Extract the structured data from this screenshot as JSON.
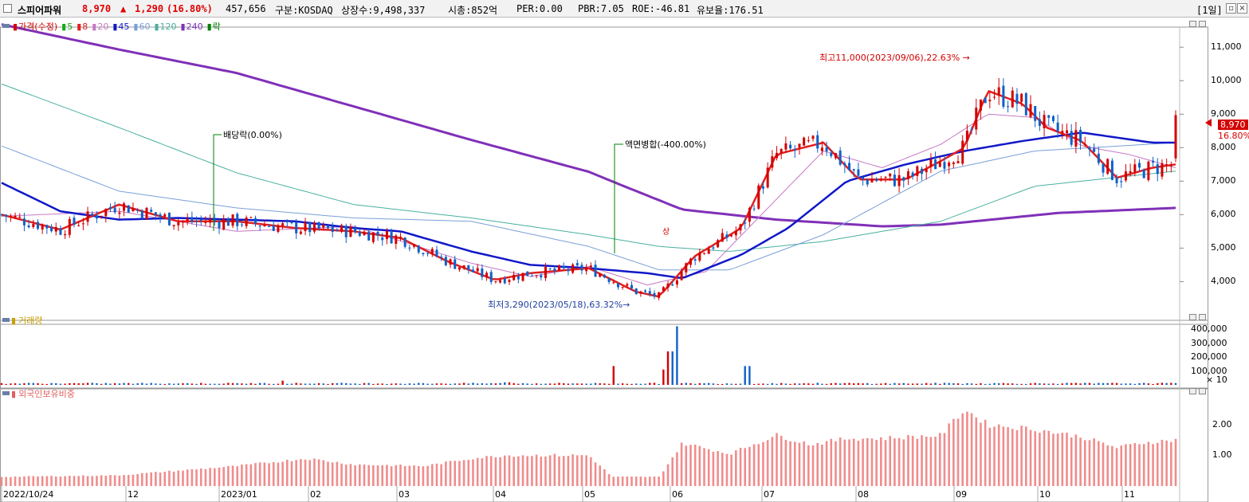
{
  "header": {
    "stock_name": "스피어파워",
    "price": "8,970",
    "change_arrow": "▲",
    "change": "1,290",
    "change_pct": "(16.80%)",
    "volume": "457,656",
    "market": "구분:KOSDAQ",
    "shares": "상장수:9,498,337",
    "mcap": "시총:852억",
    "per": "PER:0.00",
    "pbr": "PBR:7.05",
    "roe": "ROE:-46.81",
    "holding": "유보율:176.51",
    "period": "[1일]",
    "up_color": "#e00000"
  },
  "legend_price": [
    {
      "label": "가격(수정)",
      "color": "#d40000"
    },
    {
      "label": "5",
      "color": "#18a818"
    },
    {
      "label": "8",
      "color": "#e02020"
    },
    {
      "label": "20",
      "color": "#c878c8"
    },
    {
      "label": "45",
      "color": "#1018c8"
    },
    {
      "label": "60",
      "color": "#7aa0d8"
    },
    {
      "label": "120",
      "color": "#48b0a0"
    },
    {
      "label": "240",
      "color": "#8030b8"
    },
    {
      "label": "락",
      "color": "#008000"
    }
  ],
  "legend_volume": "거래량",
  "legend_foreign": "외국인보유비중",
  "annotations": {
    "high": "최고11,000(2023/09/06),22.63%",
    "low": "최저3,290(2023/05/18),63.32%",
    "dividend": "배당락(0.00%)",
    "split": "액면병합(-400.00%)",
    "up_marker": "상"
  },
  "current_price_tag": {
    "price": "8,970",
    "pct": "16.80%"
  },
  "axes": {
    "price_ticks": [
      "11,000",
      "10,000",
      "9,000",
      "8,000",
      "7,000",
      "6,000",
      "5,000",
      "4,000"
    ],
    "volume_ticks": [
      "400,000",
      "300,000",
      "200,000",
      "100,000"
    ],
    "volume_multiplier": "× 10",
    "foreign_ticks": [
      "2.00",
      "1.00"
    ],
    "x_labels": [
      "2022/10/24",
      "12",
      "2023/01",
      "02",
      "03",
      "04",
      "05",
      "06",
      "07",
      "08",
      "09",
      "10",
      "11"
    ]
  },
  "chart_data": {
    "type": "candlestick",
    "price_range": [
      3200,
      11600
    ],
    "volume_range": [
      0,
      440000
    ],
    "foreign_range": [
      0,
      2.9
    ],
    "high": {
      "value": 11000,
      "date": "2023/09/06"
    },
    "low": {
      "value": 3290,
      "date": "2023/05/18"
    },
    "last": {
      "value": 8970,
      "change": 1290,
      "change_pct": 16.8
    },
    "ma240": [
      [
        0,
        11680
      ],
      [
        0.1,
        10930
      ],
      [
        0.2,
        10230
      ],
      [
        0.3,
        9230
      ],
      [
        0.4,
        8230
      ],
      [
        0.5,
        7280
      ],
      [
        0.53,
        6850
      ],
      [
        0.58,
        6150
      ],
      [
        0.66,
        5850
      ],
      [
        0.75,
        5650
      ],
      [
        0.8,
        5700
      ],
      [
        0.9,
        6050
      ],
      [
        1,
        6200
      ]
    ],
    "ma120": [
      [
        0,
        9900
      ],
      [
        0.1,
        8600
      ],
      [
        0.2,
        7250
      ],
      [
        0.3,
        6300
      ],
      [
        0.4,
        5900
      ],
      [
        0.5,
        5400
      ],
      [
        0.56,
        5050
      ],
      [
        0.62,
        4900
      ],
      [
        0.7,
        5200
      ],
      [
        0.8,
        5800
      ],
      [
        0.88,
        6850
      ],
      [
        1,
        7300
      ]
    ],
    "ma60": [
      [
        0,
        8050
      ],
      [
        0.1,
        6700
      ],
      [
        0.2,
        6200
      ],
      [
        0.3,
        5900
      ],
      [
        0.4,
        5800
      ],
      [
        0.5,
        5050
      ],
      [
        0.56,
        4350
      ],
      [
        0.62,
        4350
      ],
      [
        0.7,
        5400
      ],
      [
        0.8,
        7300
      ],
      [
        0.88,
        7900
      ],
      [
        1,
        8150
      ]
    ],
    "ma45": [
      [
        0,
        6950
      ],
      [
        0.05,
        6100
      ],
      [
        0.1,
        5850
      ],
      [
        0.15,
        5900
      ],
      [
        0.2,
        5850
      ],
      [
        0.25,
        5800
      ],
      [
        0.3,
        5600
      ],
      [
        0.34,
        5500
      ],
      [
        0.4,
        4900
      ],
      [
        0.45,
        4500
      ],
      [
        0.5,
        4400
      ],
      [
        0.55,
        4250
      ],
      [
        0.58,
        4100
      ],
      [
        0.63,
        4800
      ],
      [
        0.67,
        5600
      ],
      [
        0.72,
        7000
      ],
      [
        0.77,
        7500
      ],
      [
        0.82,
        7900
      ],
      [
        0.87,
        8200
      ],
      [
        0.92,
        8450
      ],
      [
        0.95,
        8300
      ],
      [
        0.98,
        8150
      ],
      [
        1,
        8150
      ]
    ],
    "ma20": [
      [
        0,
        5950
      ],
      [
        0.1,
        6100
      ],
      [
        0.2,
        5500
      ],
      [
        0.3,
        5650
      ],
      [
        0.4,
        4550
      ],
      [
        0.45,
        4150
      ],
      [
        0.5,
        4450
      ],
      [
        0.55,
        3900
      ],
      [
        0.6,
        4300
      ],
      [
        0.65,
        6100
      ],
      [
        0.7,
        7900
      ],
      [
        0.75,
        7400
      ],
      [
        0.8,
        8100
      ],
      [
        0.84,
        9000
      ],
      [
        0.88,
        8900
      ],
      [
        0.92,
        8050
      ],
      [
        0.96,
        7800
      ],
      [
        1,
        7400
      ]
    ],
    "ma8": [
      [
        0,
        6000
      ],
      [
        0.05,
        5550
      ],
      [
        0.1,
        6300
      ],
      [
        0.15,
        5800
      ],
      [
        0.2,
        5800
      ],
      [
        0.25,
        5600
      ],
      [
        0.3,
        5500
      ],
      [
        0.34,
        5300
      ],
      [
        0.38,
        4600
      ],
      [
        0.42,
        4050
      ],
      [
        0.45,
        4250
      ],
      [
        0.5,
        4400
      ],
      [
        0.54,
        3700
      ],
      [
        0.56,
        3550
      ],
      [
        0.59,
        4750
      ],
      [
        0.63,
        5600
      ],
      [
        0.66,
        7800
      ],
      [
        0.7,
        8150
      ],
      [
        0.73,
        7050
      ],
      [
        0.77,
        7050
      ],
      [
        0.8,
        7600
      ],
      [
        0.82,
        8000
      ],
      [
        0.84,
        9700
      ],
      [
        0.87,
        9300
      ],
      [
        0.89,
        8600
      ],
      [
        0.92,
        8200
      ],
      [
        0.95,
        7100
      ],
      [
        0.98,
        7400
      ],
      [
        1,
        7500
      ]
    ],
    "volume_spikes": [
      [
        0.52,
        135000
      ],
      [
        0.57,
        240000
      ],
      [
        0.575,
        420000
      ],
      [
        0.565,
        110000
      ],
      [
        0.635,
        135000
      ],
      [
        0.43,
        18000
      ],
      [
        0.24,
        30000
      ]
    ],
    "foreign_level": [
      [
        0,
        0.3
      ],
      [
        0.1,
        0.35
      ],
      [
        0.2,
        0.65
      ],
      [
        0.26,
        0.9
      ],
      [
        0.3,
        0.7
      ],
      [
        0.36,
        0.65
      ],
      [
        0.4,
        0.9
      ],
      [
        0.43,
        1.0
      ],
      [
        0.5,
        1.0
      ],
      [
        0.52,
        0.3
      ],
      [
        0.56,
        0.3
      ],
      [
        0.58,
        1.4
      ],
      [
        0.62,
        1.05
      ],
      [
        0.66,
        1.65
      ],
      [
        0.69,
        1.35
      ],
      [
        0.72,
        1.55
      ],
      [
        0.75,
        1.55
      ],
      [
        0.8,
        1.65
      ],
      [
        0.82,
        2.5
      ],
      [
        0.84,
        2.0
      ],
      [
        0.88,
        1.85
      ],
      [
        0.92,
        1.6
      ],
      [
        0.95,
        1.25
      ],
      [
        0.97,
        1.4
      ],
      [
        1,
        1.5
      ]
    ]
  }
}
